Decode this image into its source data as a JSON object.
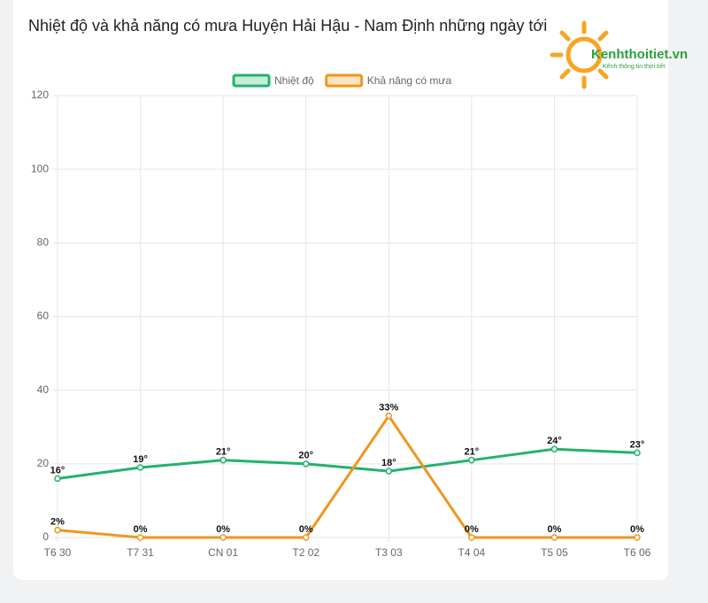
{
  "chart_data": {
    "type": "line",
    "title": "Nhiệt độ và khả năng có mưa Huyện Hải Hậu - Nam Định những ngày tới",
    "categories": [
      "T6 30",
      "T7 31",
      "CN 01",
      "T2 02",
      "T3 03",
      "T4 04",
      "T5 05",
      "T6 06"
    ],
    "series": [
      {
        "name": "Nhiệt độ",
        "color": "#23b26d",
        "values": [
          16,
          19,
          21,
          20,
          18,
          21,
          24,
          23
        ],
        "value_labels": [
          "16°",
          "19°",
          "21°",
          "20°",
          "18°",
          "21°",
          "24°",
          "23°"
        ]
      },
      {
        "name": "Khả năng có mưa",
        "color": "#f0961e",
        "values": [
          2,
          0,
          0,
          0,
          33,
          0,
          0,
          0
        ],
        "value_labels": [
          "2%",
          "0%",
          "0%",
          "0%",
          "33%",
          "0%",
          "0%",
          "0%"
        ]
      }
    ],
    "ylim": [
      0,
      120
    ],
    "yticks": [
      0,
      20,
      40,
      60,
      80,
      100,
      120
    ],
    "grid": true,
    "legend": "top"
  },
  "logo": {
    "name": "Kenhthoitiet.vn",
    "tagline": "Kênh thông tin thời tiết"
  }
}
